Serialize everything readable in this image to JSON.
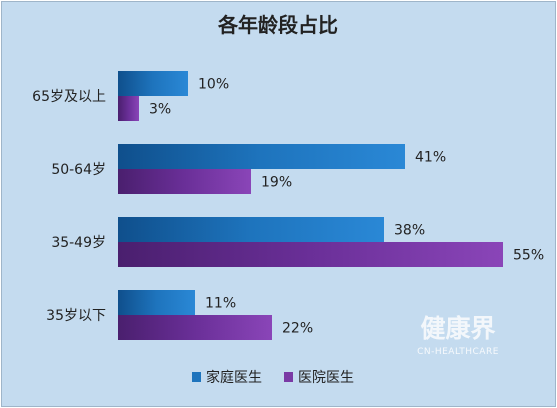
{
  "chart_data": {
    "type": "bar",
    "orientation": "horizontal",
    "title": "各年龄段占比",
    "categories": [
      "65岁及以上",
      "50-64岁",
      "35-49岁",
      "35岁以下"
    ],
    "series": [
      {
        "name": "家庭医生",
        "values": [
          10,
          41,
          38,
          11
        ],
        "labels": [
          "10%",
          "41%",
          "38%",
          "11%"
        ],
        "color": "#1e74bd"
      },
      {
        "name": "医院医生",
        "values": [
          3,
          19,
          55,
          22
        ],
        "labels": [
          "3%",
          "19%",
          "55%",
          "22%"
        ],
        "color": "#7a3aa5"
      }
    ],
    "xlim": [
      0,
      60
    ],
    "grid": false,
    "legend_position": "bottom"
  },
  "watermark": {
    "main": "健康界",
    "sub": "CN-HEALTHCARE"
  }
}
